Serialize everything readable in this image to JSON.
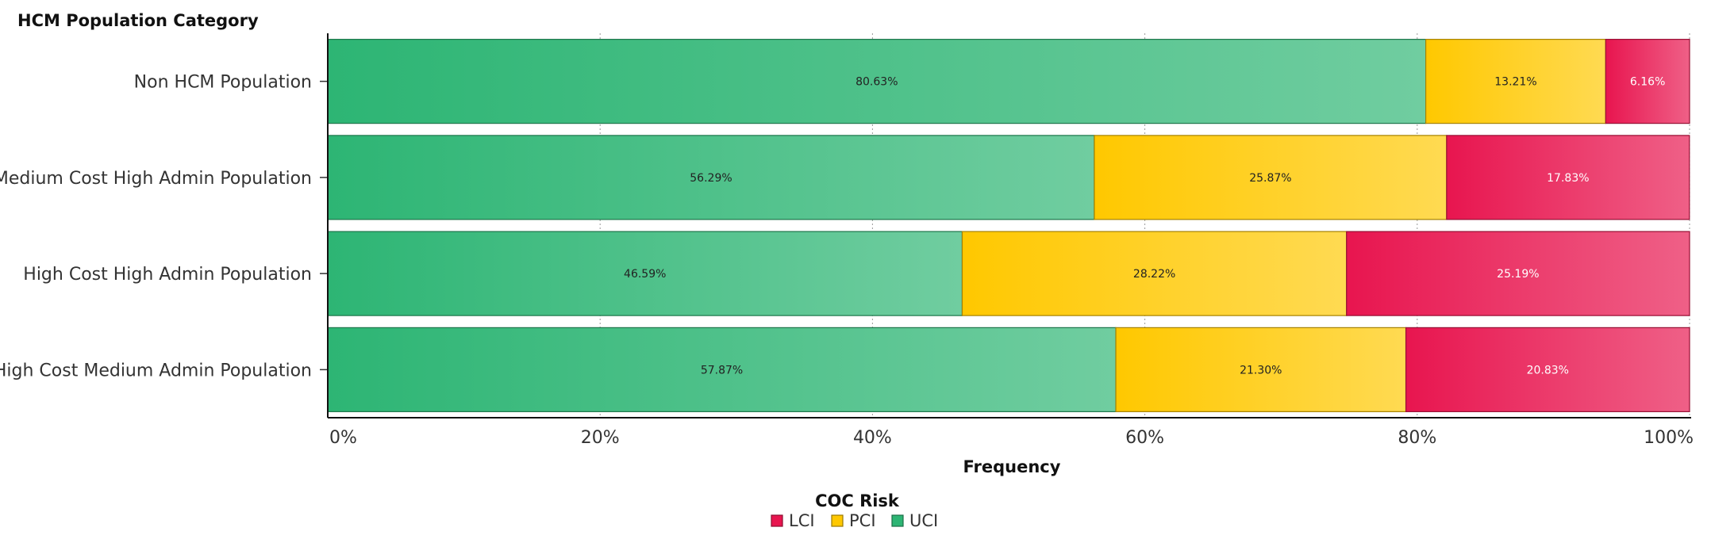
{
  "chart_data": {
    "type": "bar",
    "orientation": "horizontal",
    "stacked": true,
    "y_axis_title": "HCM Population Category",
    "xlabel": "Frequency",
    "xlim": [
      0,
      100
    ],
    "x_ticks": [
      "0%",
      "20%",
      "40%",
      "60%",
      "80%",
      "100%"
    ],
    "categories": [
      "Non HCM Population",
      "Medium Cost High Admin Population",
      "High Cost High Admin Population",
      "High Cost Medium Admin Population"
    ],
    "series": [
      {
        "name": "UCI",
        "color": "#2db574",
        "values": [
          80.63,
          56.29,
          46.59,
          57.87
        ],
        "labels": [
          "80.63%",
          "56.29%",
          "46.59%",
          "57.87%"
        ]
      },
      {
        "name": "PCI",
        "color": "#ffc800",
        "values": [
          13.21,
          25.87,
          28.22,
          21.3
        ],
        "labels": [
          "13.21%",
          "25.87%",
          "28.22%",
          "21.30%"
        ]
      },
      {
        "name": "LCI",
        "color": "#e8154f",
        "values": [
          6.16,
          17.83,
          25.19,
          20.83
        ],
        "labels": [
          "6.16%",
          "17.83%",
          "25.19%",
          "20.83%"
        ]
      }
    ],
    "legend": {
      "title": "COC Risk",
      "position": "bottom-center",
      "items": [
        {
          "name": "LCI",
          "color": "#e8154f"
        },
        {
          "name": "PCI",
          "color": "#ffc800"
        },
        {
          "name": "UCI",
          "color": "#2db574"
        }
      ]
    },
    "grid": "vertical-dotted"
  }
}
